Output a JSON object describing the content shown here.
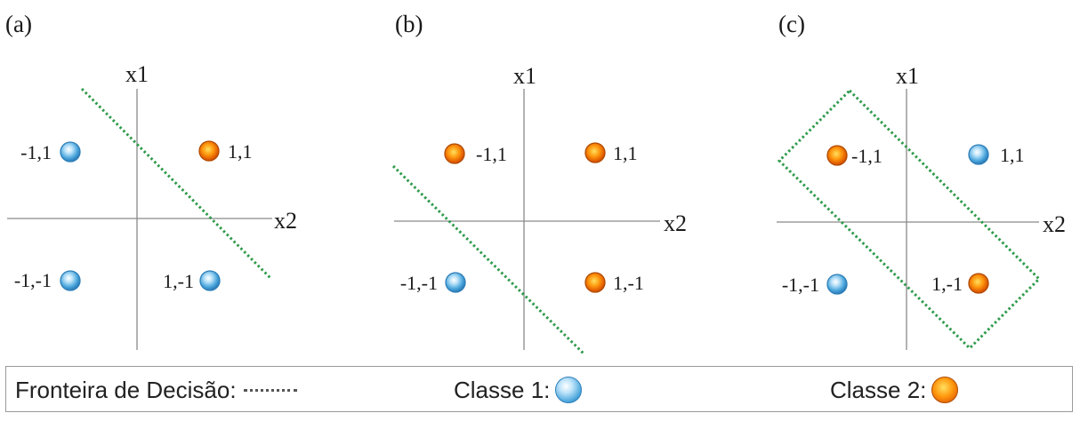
{
  "panels": [
    {
      "label": "(a)",
      "x1_label": "x1",
      "x2_label": "x2",
      "points": [
        {
          "label": "-1,1",
          "class": 1
        },
        {
          "label": "1,1",
          "class": 2
        },
        {
          "label": "-1,-1",
          "class": 1
        },
        {
          "label": "1,-1",
          "class": 1
        }
      ]
    },
    {
      "label": "(b)",
      "x1_label": "x1",
      "x2_label": "x2",
      "points": [
        {
          "label": "-1,1",
          "class": 2
        },
        {
          "label": "1,1",
          "class": 2
        },
        {
          "label": "-1,-1",
          "class": 1
        },
        {
          "label": "1,-1",
          "class": 2
        }
      ]
    },
    {
      "label": "(c)",
      "x1_label": "x1",
      "x2_label": "x2",
      "points": [
        {
          "label": "-1,1",
          "class": 2
        },
        {
          "label": "1,1",
          "class": 1
        },
        {
          "label": "-1,-1",
          "class": 1
        },
        {
          "label": "1,-1",
          "class": 2
        }
      ]
    }
  ],
  "legend": {
    "boundary_label": "Fronteira de Decisão:",
    "class1_label": "Classe 1:",
    "class2_label": "Classe 2:"
  },
  "colors": {
    "class1": "#4aa6dc",
    "class2": "#ff8a10",
    "boundary": "#2e9a4a",
    "axis": "#8a8a8a"
  }
}
